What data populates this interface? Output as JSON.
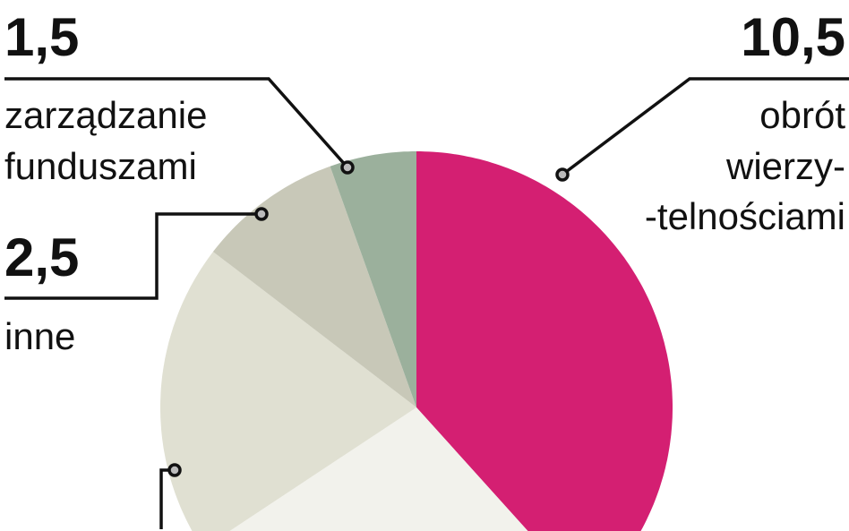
{
  "chart_data": {
    "type": "pie",
    "start": "top",
    "direction": "clockwise",
    "slices": [
      {
        "value_label": "10,5",
        "label_lines": [
          "obrót",
          "wierzy-",
          "-telnościami"
        ],
        "value": 10.5,
        "color": "#d41f72"
      },
      {
        "value_label": "",
        "label_lines": [],
        "value": 7.5,
        "color": "#f2f2ec"
      },
      {
        "value_label": "",
        "label_lines": [],
        "value": 5.4,
        "color": "#e0e0d2"
      },
      {
        "value_label": "2,5",
        "label_lines": [
          "inne"
        ],
        "value": 2.5,
        "color": "#c8c8b8"
      },
      {
        "value_label": "1,5",
        "label_lines": [
          "zarządzanie",
          "funduszami"
        ],
        "value": 1.5,
        "color": "#9bb09c"
      }
    ]
  }
}
